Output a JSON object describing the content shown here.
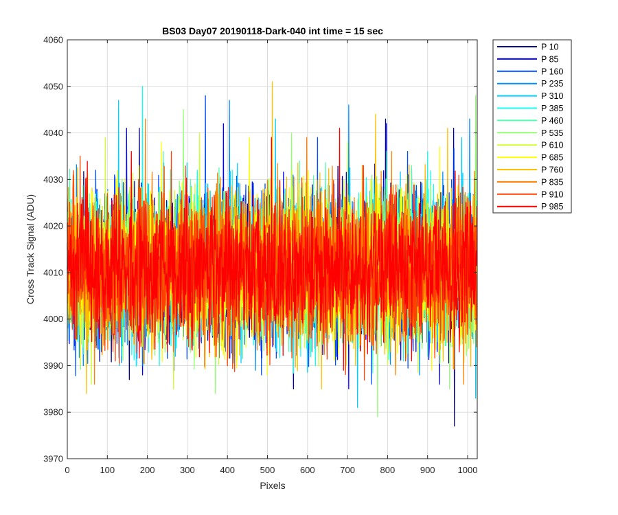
{
  "chart_data": {
    "type": "line",
    "title": "BS03 Day07 20190118-Dark-040 int time = 15 sec",
    "xlabel": "Pixels",
    "ylabel": "Cross Track Signal (ADU)",
    "xlim": [
      0,
      1024
    ],
    "ylim": [
      3970,
      4060
    ],
    "xticks": [
      0,
      100,
      200,
      300,
      400,
      500,
      600,
      700,
      800,
      900,
      1000
    ],
    "yticks": [
      3970,
      3980,
      3990,
      4000,
      4010,
      4020,
      4030,
      4040,
      4050,
      4060
    ],
    "grid": true,
    "legend_position": "outside-right",
    "noise": {
      "mean": 4011,
      "spread": 8,
      "points": 1024
    },
    "series": [
      {
        "name": "P 10",
        "color": "#00008f",
        "peaks": [
          [
            180,
            4041
          ],
          [
            795,
            4043
          ],
          [
            965,
            4041
          ]
        ],
        "troughs": [
          [
            155,
            3987
          ],
          [
            565,
            3985
          ],
          [
            967,
            3977
          ]
        ]
      },
      {
        "name": "P 85",
        "color": "#0000ff",
        "peaks": [
          [
            148,
            4041
          ],
          [
            390,
            4042
          ],
          [
            797,
            4042
          ]
        ],
        "troughs": [
          [
            188,
            3988
          ],
          [
            703,
            3985
          ],
          [
            930,
            3986
          ]
        ]
      },
      {
        "name": "P 160",
        "color": "#0050ff",
        "peaks": [
          [
            345,
            4048
          ],
          [
            625,
            4039
          ],
          [
            850,
            4036
          ]
        ],
        "troughs": [
          [
            85,
            3993
          ],
          [
            485,
            3988
          ],
          [
            760,
            3986
          ]
        ]
      },
      {
        "name": "P 235",
        "color": "#008fff",
        "peaks": [
          [
            405,
            4047
          ],
          [
            703,
            4046
          ],
          [
            1005,
            4043
          ]
        ],
        "troughs": [
          [
            40,
            3990
          ],
          [
            470,
            3989
          ],
          [
            880,
            3988
          ]
        ]
      },
      {
        "name": "P 310",
        "color": "#00cfff",
        "peaks": [
          [
            128,
            4047
          ],
          [
            520,
            4043
          ],
          [
            985,
            4039
          ]
        ],
        "troughs": [
          [
            130,
            3990
          ],
          [
            725,
            3981
          ],
          [
            1020,
            3983
          ]
        ]
      },
      {
        "name": "P 385",
        "color": "#10ffef",
        "peaks": [
          [
            188,
            4050
          ],
          [
            620,
            4042
          ],
          [
            900,
            4036
          ]
        ],
        "troughs": [
          [
            230,
            3990
          ],
          [
            620,
            3990
          ],
          [
            840,
            3991
          ]
        ]
      },
      {
        "name": "P 460",
        "color": "#50ffaf",
        "peaks": [
          [
            240,
            4036
          ],
          [
            580,
            4034
          ],
          [
            860,
            4033
          ]
        ],
        "troughs": [
          [
            300,
            3994
          ],
          [
            610,
            3993
          ],
          [
            900,
            3992
          ]
        ]
      },
      {
        "name": "P 535",
        "color": "#8fff70",
        "peaks": [
          [
            290,
            4045
          ],
          [
            560,
            4040
          ],
          [
            1020,
            4048
          ]
        ],
        "troughs": [
          [
            370,
            3984
          ],
          [
            775,
            3979
          ],
          [
            955,
            3985
          ]
        ]
      },
      {
        "name": "P 610",
        "color": "#cfff30",
        "peaks": [
          [
            95,
            4039
          ],
          [
            330,
            4040
          ],
          [
            700,
            4038
          ]
        ],
        "troughs": [
          [
            265,
            3985
          ],
          [
            60,
            3986
          ],
          [
            820,
            3990
          ]
        ]
      },
      {
        "name": "P 685",
        "color": "#ffff00",
        "peaks": [
          [
            235,
            4038
          ],
          [
            455,
            4039
          ],
          [
            930,
            4037
          ]
        ],
        "troughs": [
          [
            330,
            3992
          ],
          [
            500,
            3988
          ],
          [
            910,
            3989
          ]
        ]
      },
      {
        "name": "P 760",
        "color": "#ffbf00",
        "peaks": [
          [
            512,
            4051
          ],
          [
            770,
            4044
          ],
          [
            950,
            4041
          ]
        ],
        "troughs": [
          [
            48,
            3984
          ],
          [
            635,
            3985
          ],
          [
            720,
            3990
          ]
        ]
      },
      {
        "name": "P 835",
        "color": "#ff8000",
        "peaks": [
          [
            195,
            4043
          ],
          [
            598,
            4039
          ],
          [
            810,
            4036
          ]
        ],
        "troughs": [
          [
            68,
            3986
          ],
          [
            820,
            3988
          ],
          [
            990,
            3986
          ]
        ]
      },
      {
        "name": "P 910",
        "color": "#ff4000",
        "peaks": [
          [
            32,
            4035
          ],
          [
            260,
            4036
          ],
          [
            740,
            4033
          ]
        ],
        "troughs": [
          [
            120,
            3991
          ],
          [
            400,
            3990
          ],
          [
            845,
            3991
          ]
        ]
      },
      {
        "name": "P 985",
        "color": "#ff0000",
        "peaks": [
          [
            680,
            4041
          ],
          [
            510,
            4039
          ],
          [
            160,
            4036
          ]
        ],
        "troughs": [
          [
            860,
            3991
          ],
          [
            250,
            3993
          ],
          [
            690,
            3989
          ]
        ]
      }
    ]
  }
}
